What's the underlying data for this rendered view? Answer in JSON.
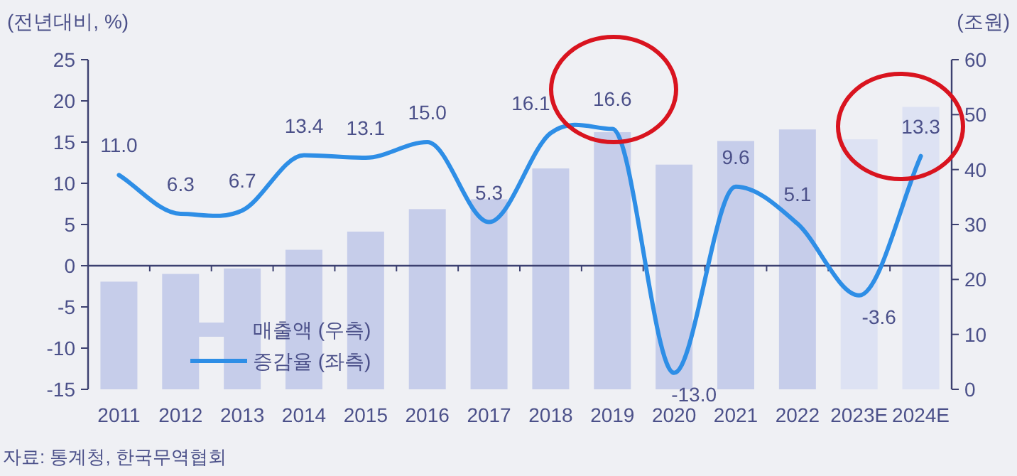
{
  "chart_data": {
    "type": "bar",
    "categories": [
      "2011",
      "2012",
      "2013",
      "2014",
      "2015",
      "2016",
      "2017",
      "2018",
      "2019",
      "2020",
      "2021",
      "2022",
      "2023E",
      "2024E"
    ],
    "ylabel": "(전년대비, %)",
    "y2label": "(조원)",
    "ylim": [
      -15,
      25
    ],
    "yticks": [
      -15,
      -10,
      -5,
      0,
      5,
      10,
      15,
      20,
      25
    ],
    "y2lim": [
      0,
      60
    ],
    "y2ticks": [
      0,
      10,
      20,
      30,
      40,
      50,
      60
    ],
    "series": [
      {
        "name": "매출액 (우측)",
        "axis": "y2",
        "color": "#c6cdea",
        "colors": [
          "#c6cdea",
          "#c6cdea",
          "#c6cdea",
          "#c6cdea",
          "#c6cdea",
          "#c6cdea",
          "#c6cdea",
          "#c6cdea",
          "#c6cdea",
          "#c6cdea",
          "#c6cdea",
          "#c6cdea",
          "#dde2f3",
          "#dde2f3"
        ],
        "values": [
          19.6,
          21.0,
          22.0,
          25.4,
          28.7,
          32.8,
          34.6,
          40.2,
          46.8,
          40.9,
          45.2,
          47.3,
          45.5,
          51.4
        ]
      },
      {
        "name": "증감율 (좌측)",
        "type": "line",
        "color": "#2e8ee6",
        "values": [
          11.0,
          6.3,
          6.7,
          13.4,
          13.1,
          15.0,
          5.3,
          16.1,
          16.6,
          -13.0,
          9.6,
          5.1,
          -3.6,
          13.3
        ],
        "value_labels": [
          "11.0",
          "6.3",
          "6.7",
          "13.4",
          "13.1",
          "15.0",
          "5.3",
          "16.1",
          "16.6",
          "-13.0",
          "9.6",
          "5.1",
          "-3.6",
          "13.3"
        ]
      }
    ],
    "ref_lines": [
      {
        "axis": "y",
        "value": 0,
        "color": "#3c4070"
      }
    ],
    "legend": "bottom left",
    "grid": false,
    "marker": "none",
    "line_style": "solid",
    "annotations": [
      "자료: 통계청, 한국무역협회"
    ]
  }
}
